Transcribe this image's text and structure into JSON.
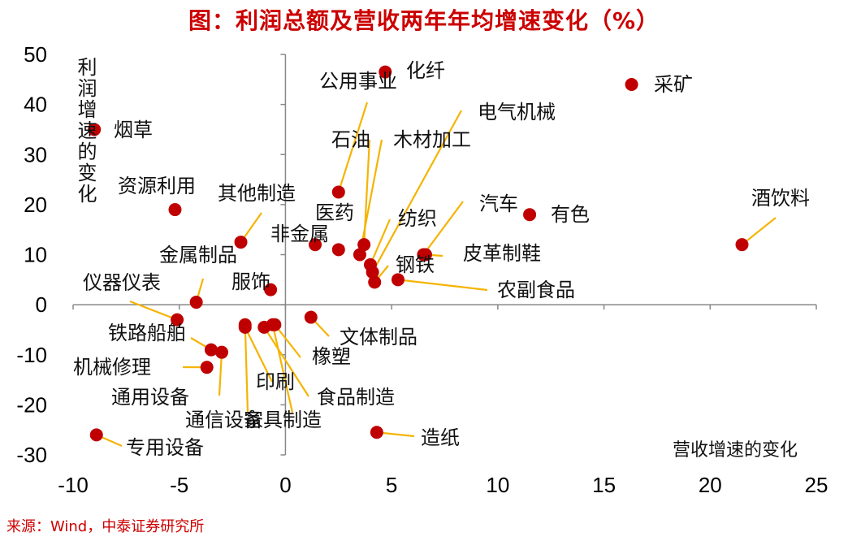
{
  "title": "图：利润总额及营收两年年均增速变化（%）",
  "source": "来源：Wind，中泰证券研究所",
  "chart_data": {
    "type": "scatter",
    "title": "图：利润总额及营收两年年均增速变化（%）",
    "xlabel": "营收增速的变化",
    "ylabel": "利润增速的变化",
    "xlim": [
      -10,
      25
    ],
    "ylim": [
      -30,
      50
    ],
    "xticks": [
      -10,
      -5,
      0,
      5,
      10,
      15,
      20,
      25
    ],
    "yticks": [
      -30,
      -20,
      -10,
      0,
      10,
      20,
      30,
      40,
      50
    ],
    "marker_color": "#c00000",
    "leader_color": "#f5b400",
    "points": [
      {
        "label": "采矿",
        "x": 16.3,
        "y": 44
      },
      {
        "label": "化纤",
        "x": 4.7,
        "y": 46.5
      },
      {
        "label": "公用事业",
        "x": 2.5,
        "y": 22.5
      },
      {
        "label": "电气机械",
        "x": 4.1,
        "y": 6.5
      },
      {
        "label": "石油",
        "x": 3.7,
        "y": 12
      },
      {
        "label": "木材加工",
        "x": 3.5,
        "y": 10
      },
      {
        "label": "烟草",
        "x": -9.0,
        "y": 35
      },
      {
        "label": "资源利用",
        "x": -5.2,
        "y": 19
      },
      {
        "label": "其他制造",
        "x": -2.1,
        "y": 12.5
      },
      {
        "label": "医药",
        "x": 2.5,
        "y": 11
      },
      {
        "label": "纺织",
        "x": 4.0,
        "y": 8
      },
      {
        "label": "汽车",
        "x": 6.5,
        "y": 10
      },
      {
        "label": "有色",
        "x": 11.5,
        "y": 18
      },
      {
        "label": "酒饮料",
        "x": 21.5,
        "y": 12
      },
      {
        "label": "非金属",
        "x": 1.4,
        "y": 12
      },
      {
        "label": "金属制品",
        "x": -4.2,
        "y": 0.5
      },
      {
        "label": "皮革制鞋",
        "x": 6.6,
        "y": 10
      },
      {
        "label": "钢铁",
        "x": 4.2,
        "y": 4.5
      },
      {
        "label": "服饰",
        "x": -0.7,
        "y": 3
      },
      {
        "label": "农副食品",
        "x": 5.3,
        "y": 5
      },
      {
        "label": "仪器仪表",
        "x": -5.1,
        "y": -3
      },
      {
        "label": "文体制品",
        "x": 1.2,
        "y": -2.5
      },
      {
        "label": "铁路船舶",
        "x": -3.5,
        "y": -9
      },
      {
        "label": "橡塑",
        "x": -0.5,
        "y": -4
      },
      {
        "label": "机械修理",
        "x": -3.7,
        "y": -12.5
      },
      {
        "label": "印刷",
        "x": -1.9,
        "y": -4.5
      },
      {
        "label": "食品制造",
        "x": -1.0,
        "y": -4.5
      },
      {
        "label": "通用设备",
        "x": -3.0,
        "y": -9.5
      },
      {
        "label": "通信设备",
        "x": -1.9,
        "y": -4
      },
      {
        "label": "家具制造",
        "x": -0.6,
        "y": -4
      },
      {
        "label": "专用设备",
        "x": -8.9,
        "y": -26
      },
      {
        "label": "造纸",
        "x": 4.3,
        "y": -25.5
      }
    ]
  }
}
